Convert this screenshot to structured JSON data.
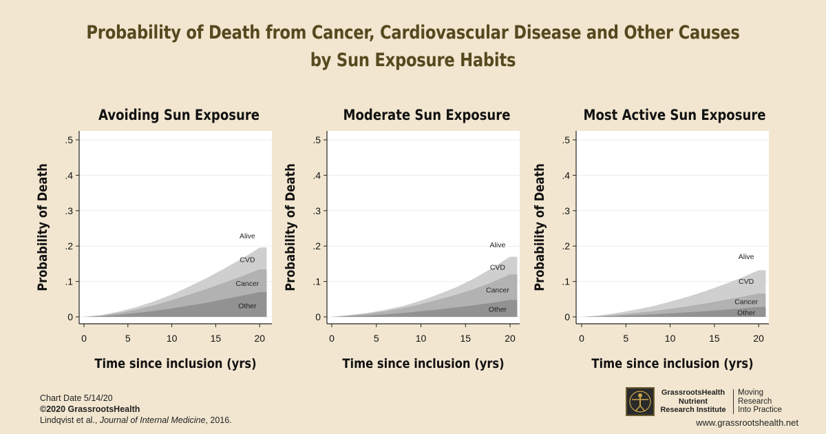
{
  "title": {
    "line1": "Probability of Death from Cancer, Cardiovascular Disease and Other Causes",
    "line2": "by Sun Exposure Habits"
  },
  "colors": {
    "background": "#f2e6d0",
    "title": "#55491f",
    "alive": "#ffffff",
    "cvd": "#cfcfcf",
    "cancer": "#b2b2b2",
    "other": "#929292"
  },
  "chart_data": [
    {
      "type": "area",
      "title": "Avoiding Sun Exposure",
      "xlabel": "Time since inclusion (yrs)",
      "ylabel": "Probability of Death",
      "xlim": [
        0,
        21
      ],
      "ylim": [
        0,
        0.5
      ],
      "xticks": [
        "0",
        "5",
        "10",
        "15",
        "20"
      ],
      "yticks": [
        "0",
        ".1",
        ".2",
        ".3",
        ".4",
        ".5"
      ],
      "grid": true,
      "stacked": true,
      "x": [
        0,
        2,
        4,
        6,
        8,
        10,
        12,
        14,
        16,
        18,
        19,
        20,
        20.8
      ],
      "series": [
        {
          "name": "Other",
          "values": [
            0,
            0.002,
            0.006,
            0.011,
            0.017,
            0.024,
            0.032,
            0.04,
            0.05,
            0.06,
            0.065,
            0.07,
            0.07
          ]
        },
        {
          "name": "Cancer",
          "values": [
            0,
            0.002,
            0.005,
            0.01,
            0.016,
            0.023,
            0.031,
            0.039,
            0.047,
            0.055,
            0.06,
            0.064,
            0.064
          ]
        },
        {
          "name": "CVD",
          "values": [
            0,
            0.001,
            0.004,
            0.007,
            0.011,
            0.016,
            0.023,
            0.031,
            0.04,
            0.05,
            0.055,
            0.062,
            0.062
          ]
        }
      ],
      "labels": {
        "alive": "Alive",
        "cvd": "CVD",
        "cancer": "Cancer",
        "other": "Other"
      }
    },
    {
      "type": "area",
      "title": "Moderate Sun Exposure",
      "xlabel": "Time since inclusion (yrs)",
      "ylabel": "Probability of Death",
      "xlim": [
        0,
        21
      ],
      "ylim": [
        0,
        0.5
      ],
      "xticks": [
        "0",
        "5",
        "10",
        "15",
        "20"
      ],
      "yticks": [
        "0",
        ".1",
        ".2",
        ".3",
        ".4",
        ".5"
      ],
      "grid": true,
      "stacked": true,
      "x": [
        0,
        2,
        4,
        6,
        8,
        10,
        12,
        14,
        16,
        18,
        19,
        20,
        20.8
      ],
      "series": [
        {
          "name": "Other",
          "values": [
            0,
            0.002,
            0.004,
            0.007,
            0.011,
            0.016,
            0.021,
            0.027,
            0.033,
            0.04,
            0.044,
            0.048,
            0.048
          ]
        },
        {
          "name": "Cancer",
          "values": [
            0,
            0.002,
            0.005,
            0.009,
            0.014,
            0.02,
            0.028,
            0.036,
            0.046,
            0.058,
            0.065,
            0.072,
            0.072
          ]
        },
        {
          "name": "CVD",
          "values": [
            0,
            0.001,
            0.002,
            0.004,
            0.006,
            0.01,
            0.015,
            0.021,
            0.03,
            0.04,
            0.045,
            0.05,
            0.05
          ]
        }
      ],
      "labels": {
        "alive": "Alive",
        "cvd": "CVD",
        "cancer": "Cancer",
        "other": "Other"
      }
    },
    {
      "type": "area",
      "title": "Most Active Sun Exposure",
      "xlabel": "Time since inclusion (yrs)",
      "ylabel": "Probability of Death",
      "xlim": [
        0,
        21
      ],
      "ylim": [
        0,
        0.5
      ],
      "xticks": [
        "0",
        "5",
        "10",
        "15",
        "20"
      ],
      "yticks": [
        "0",
        ".1",
        ".2",
        ".3",
        ".4",
        ".5"
      ],
      "grid": true,
      "stacked": true,
      "x": [
        0,
        2,
        4,
        6,
        8,
        10,
        12,
        14,
        16,
        18,
        19,
        20,
        20.8
      ],
      "series": [
        {
          "name": "Other",
          "values": [
            0,
            0.001,
            0.003,
            0.005,
            0.007,
            0.01,
            0.013,
            0.016,
            0.02,
            0.024,
            0.026,
            0.028,
            0.028
          ]
        },
        {
          "name": "Cancer",
          "values": [
            0,
            0.001,
            0.003,
            0.006,
            0.009,
            0.013,
            0.017,
            0.022,
            0.027,
            0.032,
            0.035,
            0.038,
            0.038
          ]
        },
        {
          "name": "CVD",
          "values": [
            0,
            0.002,
            0.005,
            0.009,
            0.014,
            0.02,
            0.027,
            0.035,
            0.044,
            0.054,
            0.06,
            0.066,
            0.066
          ]
        }
      ],
      "labels": {
        "alive": "Alive",
        "cvd": "CVD",
        "cancer": "Cancer",
        "other": "Other"
      }
    }
  ],
  "footer": {
    "chart_date": "Chart Date 5/14/20",
    "copyright": "©2020 GrassrootsHealth",
    "citation_authors": "Lindqvist et al., ",
    "citation_journal": "Journal of Internal Medicine",
    "citation_year": ", 2016."
  },
  "logo": {
    "org_line1": "GrassrootsHealth",
    "org_line2": "Nutrient",
    "org_line3": "Research Institute",
    "tagline1": "Moving",
    "tagline2": "Research",
    "tagline3": "Into Practice",
    "url": "www.grassrootshealth.net"
  }
}
